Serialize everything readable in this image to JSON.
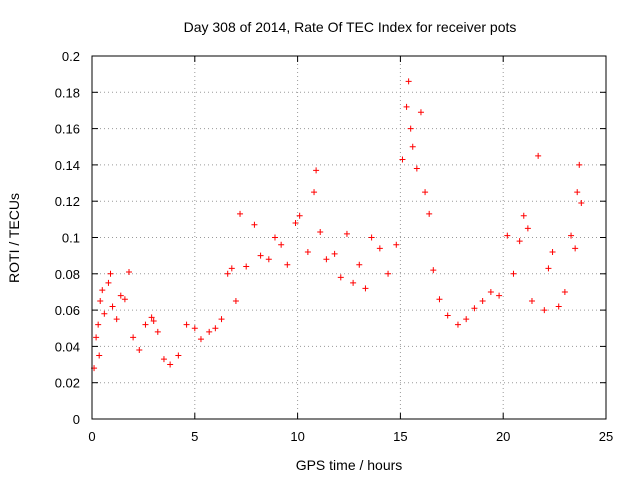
{
  "chart_data": {
    "type": "scatter",
    "title": "Day 308 of 2014, Rate Of TEC Index for receiver pots",
    "xlabel": "GPS time / hours",
    "ylabel": "ROTI / TECUs",
    "xlim": [
      0,
      25
    ],
    "ylim": [
      0,
      0.2
    ],
    "xticks": [
      0,
      5,
      10,
      15,
      20,
      25
    ],
    "yticks": [
      0,
      0.02,
      0.04,
      0.06,
      0.08,
      0.1,
      0.12,
      0.14,
      0.16,
      0.18,
      0.2
    ],
    "xtick_labels": [
      "0",
      "5",
      "10",
      "15",
      "20",
      "25"
    ],
    "ytick_labels": [
      "0",
      "0.02",
      "0.04",
      "0.06",
      "0.08",
      "0.1",
      "0.12",
      "0.14",
      "0.16",
      "0.18",
      "0.2"
    ],
    "grid": true,
    "marker": "+",
    "series": [
      {
        "name": "pots",
        "color": "#ff0000",
        "points": [
          [
            0.1,
            0.028
          ],
          [
            0.2,
            0.045
          ],
          [
            0.3,
            0.052
          ],
          [
            0.35,
            0.035
          ],
          [
            0.4,
            0.065
          ],
          [
            0.5,
            0.071
          ],
          [
            0.6,
            0.058
          ],
          [
            0.8,
            0.075
          ],
          [
            0.9,
            0.08
          ],
          [
            1.0,
            0.062
          ],
          [
            1.2,
            0.055
          ],
          [
            1.4,
            0.068
          ],
          [
            1.6,
            0.066
          ],
          [
            1.8,
            0.081
          ],
          [
            2.0,
            0.045
          ],
          [
            2.3,
            0.038
          ],
          [
            2.6,
            0.052
          ],
          [
            2.9,
            0.056
          ],
          [
            3.0,
            0.054
          ],
          [
            3.2,
            0.048
          ],
          [
            3.5,
            0.033
          ],
          [
            3.8,
            0.03
          ],
          [
            4.2,
            0.035
          ],
          [
            4.6,
            0.052
          ],
          [
            5.0,
            0.05
          ],
          [
            5.3,
            0.044
          ],
          [
            5.7,
            0.048
          ],
          [
            6.0,
            0.05
          ],
          [
            6.3,
            0.055
          ],
          [
            6.6,
            0.08
          ],
          [
            6.8,
            0.083
          ],
          [
            7.0,
            0.065
          ],
          [
            7.2,
            0.113
          ],
          [
            7.5,
            0.084
          ],
          [
            7.9,
            0.107
          ],
          [
            8.2,
            0.09
          ],
          [
            8.6,
            0.088
          ],
          [
            8.9,
            0.1
          ],
          [
            9.2,
            0.096
          ],
          [
            9.5,
            0.085
          ],
          [
            9.9,
            0.108
          ],
          [
            10.1,
            0.112
          ],
          [
            10.5,
            0.092
          ],
          [
            10.8,
            0.125
          ],
          [
            10.9,
            0.137
          ],
          [
            11.1,
            0.103
          ],
          [
            11.4,
            0.088
          ],
          [
            11.8,
            0.091
          ],
          [
            12.1,
            0.078
          ],
          [
            12.4,
            0.102
          ],
          [
            12.7,
            0.075
          ],
          [
            13.0,
            0.085
          ],
          [
            13.3,
            0.072
          ],
          [
            13.6,
            0.1
          ],
          [
            14.0,
            0.094
          ],
          [
            14.4,
            0.08
          ],
          [
            14.8,
            0.096
          ],
          [
            15.1,
            0.143
          ],
          [
            15.3,
            0.172
          ],
          [
            15.4,
            0.186
          ],
          [
            15.5,
            0.16
          ],
          [
            15.6,
            0.15
          ],
          [
            15.8,
            0.138
          ],
          [
            16.0,
            0.169
          ],
          [
            16.2,
            0.125
          ],
          [
            16.4,
            0.113
          ],
          [
            16.6,
            0.082
          ],
          [
            16.9,
            0.066
          ],
          [
            17.3,
            0.057
          ],
          [
            17.8,
            0.052
          ],
          [
            18.2,
            0.055
          ],
          [
            18.6,
            0.061
          ],
          [
            19.0,
            0.065
          ],
          [
            19.4,
            0.07
          ],
          [
            19.8,
            0.068
          ],
          [
            20.2,
            0.101
          ],
          [
            20.5,
            0.08
          ],
          [
            20.8,
            0.098
          ],
          [
            21.0,
            0.112
          ],
          [
            21.2,
            0.105
          ],
          [
            21.4,
            0.065
          ],
          [
            21.7,
            0.145
          ],
          [
            22.0,
            0.06
          ],
          [
            22.2,
            0.083
          ],
          [
            22.4,
            0.092
          ],
          [
            22.7,
            0.062
          ],
          [
            23.0,
            0.07
          ],
          [
            23.3,
            0.101
          ],
          [
            23.5,
            0.094
          ],
          [
            23.6,
            0.125
          ],
          [
            23.7,
            0.14
          ],
          [
            23.8,
            0.119
          ]
        ]
      }
    ]
  }
}
